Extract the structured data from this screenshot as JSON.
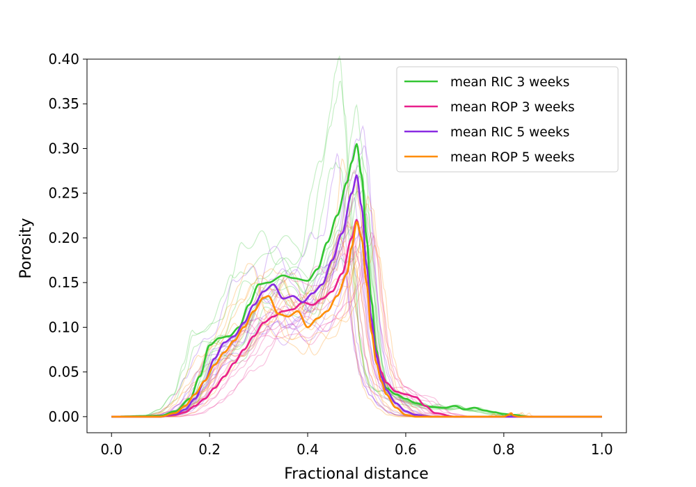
{
  "chart_data": {
    "type": "line",
    "title": "",
    "xlabel": "Fractional distance",
    "ylabel": "Porosity",
    "xlim": [
      -0.05,
      1.05
    ],
    "ylim": [
      -0.018,
      0.4
    ],
    "xticks": [
      0.0,
      0.2,
      0.4,
      0.6,
      0.8,
      1.0
    ],
    "xtick_labels": [
      "0.0",
      "0.2",
      "0.4",
      "0.6",
      "0.8",
      "1.0"
    ],
    "yticks": [
      0.0,
      0.05,
      0.1,
      0.15,
      0.2,
      0.25,
      0.3,
      0.35,
      0.4
    ],
    "ytick_labels": [
      "0.00",
      "0.05",
      "0.10",
      "0.15",
      "0.20",
      "0.25",
      "0.30",
      "0.35",
      "0.40"
    ],
    "grid": false,
    "legend_position": "top-right",
    "series": [
      {
        "name": "mean RIC 3 weeks",
        "color": "#33c633",
        "x": [
          0.0,
          0.1,
          0.13,
          0.16,
          0.18,
          0.2,
          0.22,
          0.24,
          0.26,
          0.28,
          0.3,
          0.32,
          0.35,
          0.37,
          0.4,
          0.42,
          0.44,
          0.46,
          0.48,
          0.49,
          0.5,
          0.51,
          0.52,
          0.53,
          0.54,
          0.55,
          0.56,
          0.58,
          0.6,
          0.62,
          0.65,
          0.68,
          0.7,
          0.72,
          0.74,
          0.76,
          0.78,
          0.8,
          0.82,
          0.85,
          1.0
        ],
        "y": [
          0.0,
          0.001,
          0.006,
          0.02,
          0.045,
          0.08,
          0.088,
          0.09,
          0.1,
          0.125,
          0.148,
          0.15,
          0.158,
          0.155,
          0.152,
          0.165,
          0.195,
          0.225,
          0.262,
          0.285,
          0.305,
          0.27,
          0.2,
          0.13,
          0.075,
          0.045,
          0.032,
          0.025,
          0.02,
          0.015,
          0.011,
          0.01,
          0.012,
          0.008,
          0.01,
          0.007,
          0.005,
          0.003,
          0.002,
          0.0,
          0.0
        ]
      },
      {
        "name": "mean ROP 3 weeks",
        "color": "#e8208c",
        "x": [
          0.0,
          0.1,
          0.13,
          0.15,
          0.17,
          0.19,
          0.21,
          0.23,
          0.25,
          0.27,
          0.29,
          0.31,
          0.33,
          0.35,
          0.37,
          0.39,
          0.41,
          0.43,
          0.45,
          0.47,
          0.49,
          0.5,
          0.51,
          0.52,
          0.53,
          0.54,
          0.55,
          0.56,
          0.58,
          0.6,
          0.62,
          0.64,
          0.66,
          0.7,
          1.0
        ],
        "y": [
          0.0,
          0.0,
          0.002,
          0.005,
          0.012,
          0.02,
          0.032,
          0.045,
          0.06,
          0.075,
          0.09,
          0.105,
          0.112,
          0.118,
          0.12,
          0.128,
          0.125,
          0.132,
          0.14,
          0.16,
          0.2,
          0.22,
          0.2,
          0.15,
          0.1,
          0.07,
          0.05,
          0.038,
          0.028,
          0.025,
          0.022,
          0.012,
          0.004,
          0.0,
          0.0
        ]
      },
      {
        "name": "mean RIC 5 weeks",
        "color": "#8a2be2",
        "x": [
          0.0,
          0.1,
          0.13,
          0.15,
          0.17,
          0.19,
          0.21,
          0.23,
          0.25,
          0.27,
          0.29,
          0.31,
          0.33,
          0.35,
          0.37,
          0.39,
          0.41,
          0.43,
          0.45,
          0.47,
          0.49,
          0.5,
          0.51,
          0.52,
          0.53,
          0.54,
          0.55,
          0.56,
          0.58,
          0.6,
          0.62,
          0.65,
          1.0
        ],
        "y": [
          0.0,
          0.0,
          0.003,
          0.008,
          0.02,
          0.04,
          0.065,
          0.083,
          0.09,
          0.105,
          0.125,
          0.14,
          0.148,
          0.132,
          0.135,
          0.128,
          0.138,
          0.148,
          0.175,
          0.205,
          0.25,
          0.27,
          0.235,
          0.17,
          0.11,
          0.068,
          0.045,
          0.03,
          0.015,
          0.006,
          0.002,
          0.0,
          0.0
        ]
      },
      {
        "name": "mean ROP 5 weeks",
        "color": "#ff8c00",
        "x": [
          0.0,
          0.1,
          0.13,
          0.15,
          0.17,
          0.19,
          0.21,
          0.23,
          0.25,
          0.27,
          0.29,
          0.31,
          0.32,
          0.34,
          0.36,
          0.38,
          0.4,
          0.42,
          0.44,
          0.46,
          0.48,
          0.49,
          0.5,
          0.51,
          0.52,
          0.53,
          0.54,
          0.55,
          0.56,
          0.58,
          0.6,
          0.62,
          0.8,
          0.81,
          0.815,
          0.82,
          0.83,
          1.0
        ],
        "y": [
          0.0,
          0.0,
          0.004,
          0.012,
          0.025,
          0.04,
          0.058,
          0.072,
          0.085,
          0.1,
          0.118,
          0.133,
          0.135,
          0.115,
          0.112,
          0.118,
          0.1,
          0.11,
          0.118,
          0.135,
          0.16,
          0.19,
          0.218,
          0.2,
          0.15,
          0.095,
          0.06,
          0.04,
          0.025,
          0.01,
          0.002,
          0.0,
          0.0,
          0.002,
          0.004,
          0.001,
          0.0,
          0.0
        ]
      }
    ]
  }
}
